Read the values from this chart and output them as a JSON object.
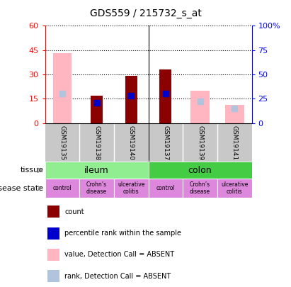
{
  "title": "GDS559 / 215732_s_at",
  "samples": [
    "GSM19135",
    "GSM19138",
    "GSM19140",
    "GSM19137",
    "GSM19139",
    "GSM19141"
  ],
  "count": [
    0,
    17,
    29,
    33,
    0,
    0
  ],
  "percentile_rank": [
    0,
    21,
    28,
    30,
    0,
    0
  ],
  "value_absent": [
    43,
    0,
    0,
    0,
    20,
    11
  ],
  "rank_absent": [
    30,
    0,
    0,
    0,
    22,
    15
  ],
  "has_count": [
    false,
    true,
    true,
    true,
    false,
    false
  ],
  "has_absent": [
    true,
    false,
    false,
    false,
    true,
    true
  ],
  "ylim_left": [
    0,
    60
  ],
  "ylim_right": [
    0,
    100
  ],
  "yticks_left": [
    0,
    15,
    30,
    45,
    60
  ],
  "yticks_right": [
    0,
    25,
    50,
    75,
    100
  ],
  "ytick_labels_left": [
    "0",
    "15",
    "30",
    "45",
    "60"
  ],
  "ytick_labels_right": [
    "0",
    "25",
    "50",
    "75",
    "100%"
  ],
  "color_count": "#8B0000",
  "color_percentile": "#0000CC",
  "color_value_absent": "#FFB6C1",
  "color_rank_absent": "#B0C4DE",
  "tissue_color_ileum": "#90EE90",
  "tissue_color_colon": "#44CC44",
  "disease_color": "#DD88DD",
  "sample_bg": "#C8C8C8",
  "legend_texts": [
    "count",
    "percentile rank within the sample",
    "value, Detection Call = ABSENT",
    "rank, Detection Call = ABSENT"
  ],
  "disease_labels": [
    "control",
    "Crohn’s\ndisease",
    "ulcerative\ncolitis",
    "control",
    "Crohn’s\ndisease",
    "ulcerative\ncolitis"
  ]
}
